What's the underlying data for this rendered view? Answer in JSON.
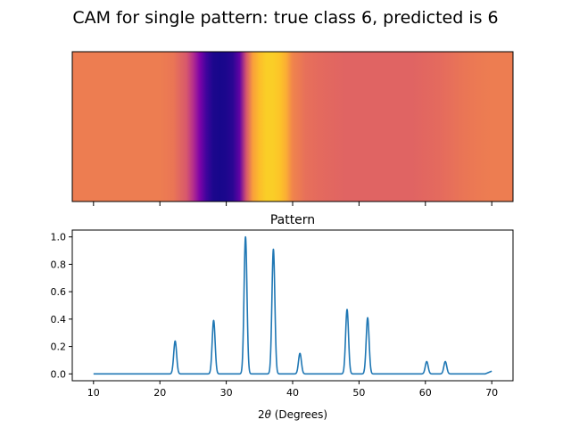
{
  "figure": {
    "suptitle": "CAM for single pattern: true class 6, predicted is 6"
  },
  "chart_data": [
    {
      "type": "heatmap",
      "title": "",
      "colormap": "plasma",
      "x": [
        10,
        12,
        14,
        16,
        18,
        20,
        22,
        24,
        25,
        26,
        27,
        28,
        29,
        30,
        31,
        32,
        33,
        34,
        35,
        36,
        37,
        38,
        39,
        40,
        42,
        44,
        46,
        48,
        50,
        52,
        54,
        56,
        58,
        60,
        62,
        64,
        66,
        68,
        70
      ],
      "values": [
        0.68,
        0.68,
        0.68,
        0.68,
        0.68,
        0.68,
        0.66,
        0.56,
        0.42,
        0.25,
        0.1,
        0.03,
        0.02,
        0.03,
        0.06,
        0.18,
        0.55,
        0.78,
        0.86,
        0.9,
        0.9,
        0.88,
        0.82,
        0.7,
        0.64,
        0.62,
        0.61,
        0.6,
        0.6,
        0.6,
        0.6,
        0.6,
        0.6,
        0.61,
        0.62,
        0.64,
        0.66,
        0.67,
        0.68
      ],
      "xlim": [
        6.8,
        73.2
      ],
      "y_ticks_visible": false,
      "x_tick_labels_visible": false,
      "xticks": [
        10,
        20,
        30,
        40,
        50,
        60,
        70
      ]
    },
    {
      "type": "line",
      "title": "Pattern",
      "xlabel_prefix": "2",
      "xlabel_symbol": "θ",
      "xlabel_suffix": " (Degrees)",
      "ylabel": "",
      "xlim": [
        6.8,
        73.2
      ],
      "ylim": [
        -0.05,
        1.05
      ],
      "xticks": [
        10,
        20,
        30,
        40,
        50,
        60,
        70
      ],
      "yticks": [
        0.0,
        0.2,
        0.4,
        0.6,
        0.8,
        1.0
      ],
      "xtick_labels": [
        "10",
        "20",
        "30",
        "40",
        "50",
        "60",
        "70"
      ],
      "ytick_labels": [
        "0.0",
        "0.2",
        "0.4",
        "0.6",
        "0.8",
        "1.0"
      ],
      "color": "#1f77b4",
      "baseline": 0.0,
      "peaks": [
        {
          "x": 22.3,
          "y": 0.24
        },
        {
          "x": 28.1,
          "y": 0.39
        },
        {
          "x": 32.9,
          "y": 1.0
        },
        {
          "x": 37.1,
          "y": 0.91
        },
        {
          "x": 41.1,
          "y": 0.15
        },
        {
          "x": 48.2,
          "y": 0.47
        },
        {
          "x": 51.3,
          "y": 0.41
        },
        {
          "x": 60.2,
          "y": 0.09
        },
        {
          "x": 63.0,
          "y": 0.09
        }
      ],
      "end_point": {
        "x": 70,
        "y": 0.02
      }
    }
  ]
}
